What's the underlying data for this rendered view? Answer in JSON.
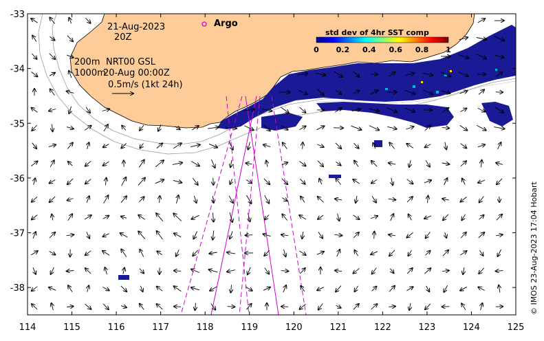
{
  "map": {
    "date": "21-Aug-2023",
    "hour": "20Z",
    "isobath_200": "200m",
    "isobath_1000": "1000m",
    "source": "NRT00 GSL",
    "source_time": "20-Aug 00:00Z",
    "scale_label": "0.5m/s (1kt 24h)",
    "argo_label": "Argo",
    "credit": "© IMOS 23-Aug-2023 17:04 Hobart",
    "colors": {
      "land": "#fdcc99",
      "ocean": "#ffffff",
      "track": "#d000d0",
      "high_std": "#1a1a96"
    }
  },
  "colorbar": {
    "title": "std dev of 4hr SST comp",
    "ticks": [
      "0",
      "0.2",
      "0.4",
      "0.6",
      "0.8",
      "1"
    ],
    "colormap": "jet"
  },
  "axes": {
    "x_ticks": [
      "114",
      "115",
      "116",
      "117",
      "118",
      "119",
      "120",
      "121",
      "122",
      "123",
      "124",
      "125"
    ],
    "y_ticks": [
      "-33",
      "-34",
      "-35",
      "-36",
      "-37",
      "-38"
    ],
    "xlim": [
      114,
      125
    ],
    "ylim": [
      -38.5,
      -33
    ]
  }
}
